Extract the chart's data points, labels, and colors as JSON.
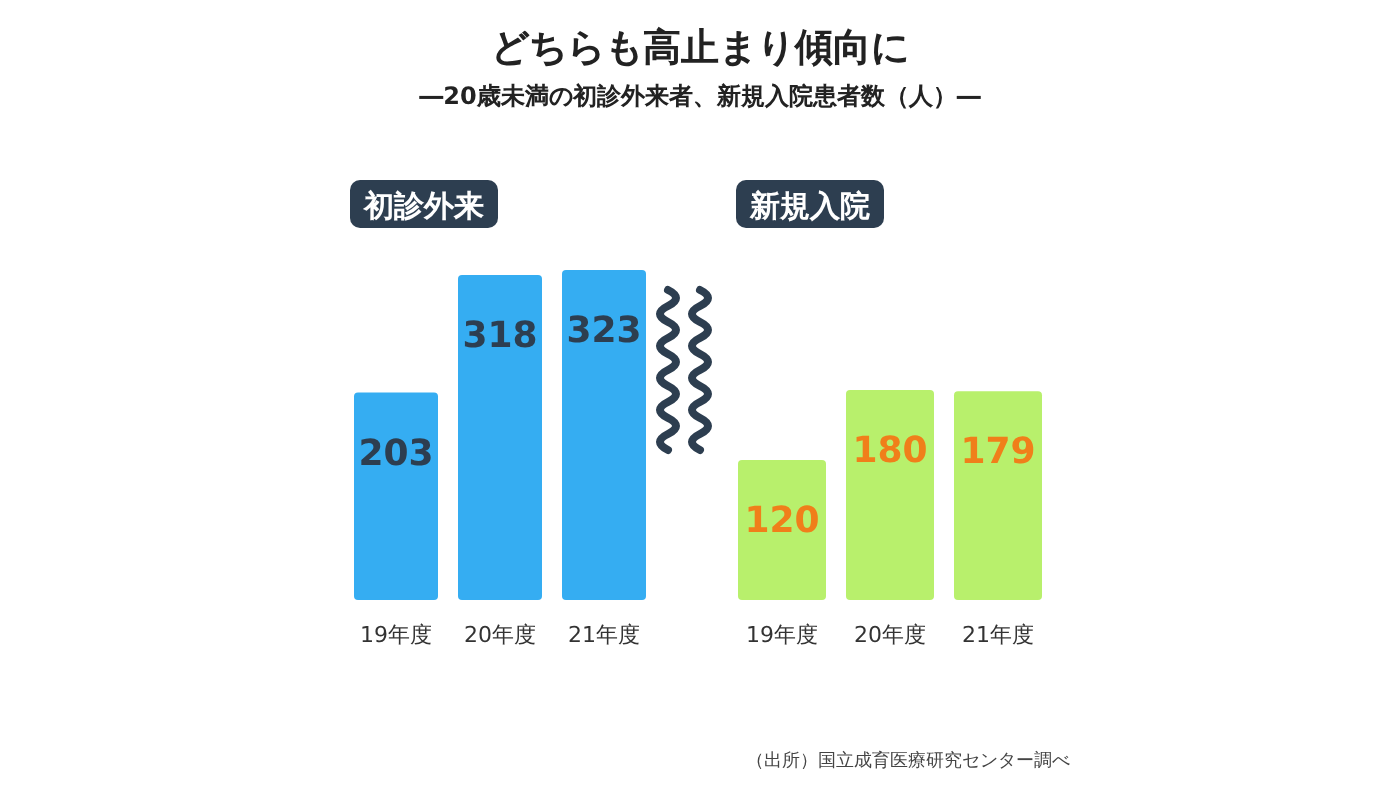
{
  "chart_data": [
    {
      "type": "bar",
      "title": "初診外来",
      "categories": [
        "19年度",
        "20年度",
        "21年度"
      ],
      "values": [
        203,
        318,
        323
      ],
      "color": "#35adf2",
      "data_labels": true
    },
    {
      "type": "bar",
      "title": "新規入院",
      "categories": [
        "19年度",
        "20年度",
        "21年度"
      ],
      "values": [
        120,
        180,
        179
      ],
      "color": "#b8f06c",
      "data_labels": true
    },
    {
      "type": "other",
      "title": "どちらも高止まり傾向に",
      "subtitle": "―20歳未満の初診外来者、新規入院患者数（人）―",
      "annotations": [
        "（出所）国立成育医療研究センター調べ"
      ]
    }
  ]
}
